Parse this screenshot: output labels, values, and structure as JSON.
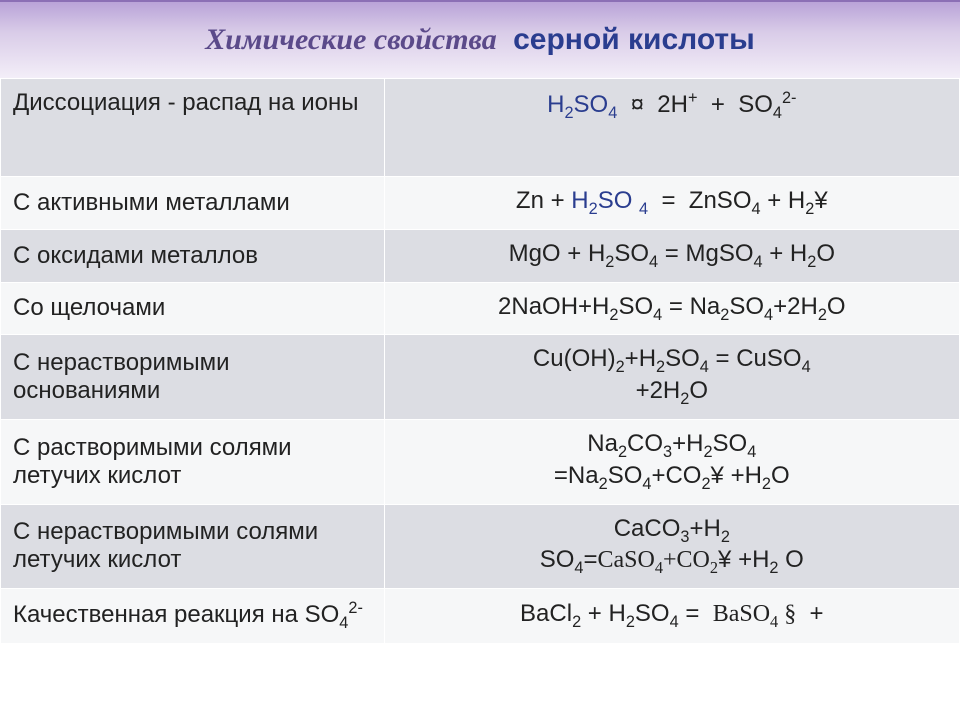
{
  "header": {
    "title_part1": "Химические свойства",
    "title_part2": "серной кислоты",
    "bg_top": "#b9a3d8",
    "bg_bottom": "#f3eef8",
    "title_color1": "#5b4a8a",
    "title_color2": "#2a3d8f"
  },
  "table": {
    "row_alt_bg": "#dcdde3",
    "row_plain_bg": "#f6f7f8",
    "border_color": "#ffffff",
    "font_size": 24,
    "text_color": "#222222",
    "highlight_color": "#2a3d8f",
    "col_widths": [
      "40%",
      "60%"
    ],
    "rows": [
      {
        "left": "Диссоциация  - распад на ионы",
        "right_html": "<span class='blue'>H<sub>2</sub>SO<sub>4</sub></span> &nbsp;¤&nbsp; 2H<sup>+</sup> &nbsp;+&nbsp; SO<sub>4</sub><sup>2-</sup>",
        "alt": true,
        "tall": true
      },
      {
        "left": "С активными металлами",
        "right_html": "Zn + <span class='blue'>H<sub>2</sub>SO <sub>4</sub></span> &nbsp;=&nbsp; ZnSO<sub>4</sub> + H<sub>2</sub>¥",
        "alt": false
      },
      {
        "left": "С оксидами металлов",
        "right_html": "MgO + H<sub>2</sub>SO<sub>4</sub>  = MgSO<sub>4</sub> + H<sub>2</sub>O",
        "alt": true
      },
      {
        "left": "Со щелочами",
        "right_html": "2NaOH+H<sub>2</sub>SO<sub>4</sub> = Na<sub>2</sub>SO<sub>4</sub>+2H<sub>2</sub>O",
        "alt": false
      },
      {
        "left": "С нерастворимыми основаниями",
        "right_html": "Cu(OH)<sub>2</sub>+H<sub>2</sub>SO<sub>4</sub> = CuSO<sub>4</sub><br>+2H<sub>2</sub>O",
        "alt": true
      },
      {
        "left": "С  растворимыми солями летучих кислот",
        "right_html": "Na<sub>2</sub>CO<sub>3</sub>+H<sub>2</sub>SO<sub>4</sub><br>=Na<sub>2</sub>SO<sub>4</sub>+CO<sub>2</sub>¥ +H<sub>2</sub>O",
        "alt": false
      },
      {
        "left": "С  нерастворимыми солями летучих кислот",
        "right_html": "CaCO<sub>3</sub>+H<sub>2</sub><br>SO<sub>4</sub>=<span class='serif'>CaSO<sub>4</sub>+CO<sub>2</sub></span>¥ +H<sub>2</sub> O",
        "alt": true
      },
      {
        "left": "Качественная реакция  на SO<sub>4</sub><sup>2-</sup>",
        "right_html": "BaCl<sub>2</sub> + H<sub>2</sub>SO<sub>4</sub> = &nbsp;<span class='serif'>BaSO<sub>4</sub> §</span>&nbsp; +",
        "alt": false
      }
    ]
  }
}
